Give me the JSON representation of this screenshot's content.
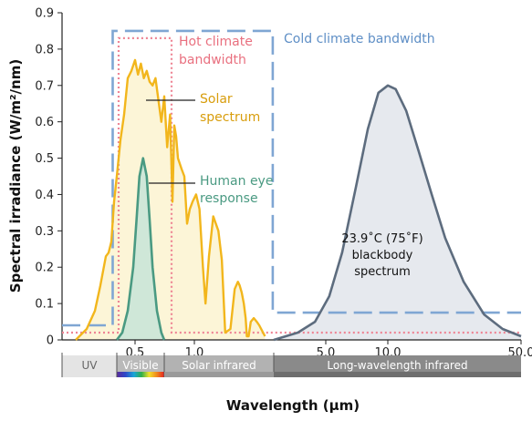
{
  "chart_data": {
    "type": "line",
    "ylabel": "Spectral irradiance (W/m²/nm)",
    "xlabel": "Wavelength (µm)",
    "ylim": [
      0,
      0.9
    ],
    "yticks": [
      "0",
      "0.1",
      "0.2",
      "0.3",
      "0.4",
      "0.5",
      "0.6",
      "0.7",
      "0.8",
      "0.9"
    ],
    "x_scale": "piecewise",
    "xticks": [
      "0.5",
      "1.0",
      "5.0",
      "10.0",
      "50.0"
    ],
    "bands": [
      {
        "label": "UV",
        "color": "#e4e4e4",
        "x": [
          0.2,
          0.4
        ]
      },
      {
        "label": "Visible",
        "color": "spectrum",
        "x": [
          0.4,
          0.7
        ]
      },
      {
        "label": "Solar infrared",
        "color": "#b2b2b2",
        "x": [
          0.7,
          3.0
        ]
      },
      {
        "label": "Long-wavelength infrared",
        "color": "#8a8a8a",
        "x": [
          3.0,
          50.0
        ]
      }
    ],
    "series": [
      {
        "name": "Solar spectrum",
        "color": "#f2b61c",
        "fill": "#fcf5d7",
        "points": [
          [
            0.25,
            0.0
          ],
          [
            0.29,
            0.03
          ],
          [
            0.32,
            0.08
          ],
          [
            0.34,
            0.15
          ],
          [
            0.36,
            0.23
          ],
          [
            0.37,
            0.24
          ],
          [
            0.38,
            0.27
          ],
          [
            0.39,
            0.38
          ],
          [
            0.4,
            0.45
          ],
          [
            0.42,
            0.55
          ],
          [
            0.44,
            0.62
          ],
          [
            0.46,
            0.72
          ],
          [
            0.48,
            0.74
          ],
          [
            0.5,
            0.77
          ],
          [
            0.52,
            0.73
          ],
          [
            0.54,
            0.76
          ],
          [
            0.56,
            0.72
          ],
          [
            0.58,
            0.74
          ],
          [
            0.6,
            0.71
          ],
          [
            0.62,
            0.7
          ],
          [
            0.64,
            0.72
          ],
          [
            0.66,
            0.66
          ],
          [
            0.68,
            0.6
          ],
          [
            0.7,
            0.67
          ],
          [
            0.72,
            0.53
          ],
          [
            0.74,
            0.62
          ],
          [
            0.76,
            0.38
          ],
          [
            0.78,
            0.59
          ],
          [
            0.8,
            0.56
          ],
          [
            0.82,
            0.5
          ],
          [
            0.86,
            0.47
          ],
          [
            0.89,
            0.45
          ],
          [
            0.92,
            0.32
          ],
          [
            0.95,
            0.36
          ],
          [
            0.98,
            0.38
          ],
          [
            1.02,
            0.4
          ],
          [
            1.06,
            0.36
          ],
          [
            1.1,
            0.2
          ],
          [
            1.13,
            0.1
          ],
          [
            1.17,
            0.23
          ],
          [
            1.22,
            0.34
          ],
          [
            1.28,
            0.3
          ],
          [
            1.32,
            0.22
          ],
          [
            1.36,
            0.02
          ],
          [
            1.42,
            0.03
          ],
          [
            1.47,
            0.14
          ],
          [
            1.52,
            0.16
          ],
          [
            1.58,
            0.15
          ],
          [
            1.65,
            0.13
          ],
          [
            1.72,
            0.1
          ],
          [
            1.78,
            0.06
          ],
          [
            1.82,
            0.01
          ],
          [
            1.88,
            0.01
          ],
          [
            1.95,
            0.05
          ],
          [
            2.05,
            0.06
          ],
          [
            2.15,
            0.05
          ],
          [
            2.25,
            0.04
          ],
          [
            2.35,
            0.03
          ],
          [
            2.45,
            0.02
          ],
          [
            2.55,
            0.01
          ]
        ]
      },
      {
        "name": "Human eye response",
        "color": "#4a9a82",
        "fill": "#cfe7d8",
        "points": [
          [
            0.4,
            0.0
          ],
          [
            0.43,
            0.02
          ],
          [
            0.46,
            0.08
          ],
          [
            0.49,
            0.2
          ],
          [
            0.51,
            0.33
          ],
          [
            0.53,
            0.45
          ],
          [
            0.555,
            0.5
          ],
          [
            0.58,
            0.45
          ],
          [
            0.6,
            0.33
          ],
          [
            0.62,
            0.2
          ],
          [
            0.65,
            0.08
          ],
          [
            0.68,
            0.02
          ],
          [
            0.7,
            0.0
          ]
        ]
      },
      {
        "name": "23.9˚C (75˚F) blackbody spectrum",
        "color": "#5d6c7e",
        "fill": "#e6e9ee",
        "points": [
          [
            3.0,
            0.0
          ],
          [
            3.8,
            0.02
          ],
          [
            4.5,
            0.05
          ],
          [
            5.2,
            0.12
          ],
          [
            6.0,
            0.24
          ],
          [
            7.0,
            0.42
          ],
          [
            8.0,
            0.58
          ],
          [
            9.0,
            0.68
          ],
          [
            10.0,
            0.7
          ],
          [
            11.0,
            0.69
          ],
          [
            12.5,
            0.63
          ],
          [
            14.5,
            0.52
          ],
          [
            17.0,
            0.4
          ],
          [
            20.0,
            0.28
          ],
          [
            25.0,
            0.16
          ],
          [
            32.0,
            0.07
          ],
          [
            40.0,
            0.03
          ],
          [
            50.0,
            0.01
          ]
        ]
      }
    ],
    "bandwidths": [
      {
        "label": "Cold climate bandwidth",
        "color": "#7fa6d3",
        "style": "dashed",
        "points": [
          [
            0.2,
            0.04
          ],
          [
            0.385,
            0.04
          ],
          [
            0.385,
            0.85
          ],
          [
            2.95,
            0.85
          ],
          [
            2.95,
            0.075
          ],
          [
            50.0,
            0.075
          ]
        ]
      },
      {
        "label": "Hot climate bandwidth",
        "color": "#ee8494",
        "style": "dotted",
        "points": [
          [
            0.2,
            0.02
          ],
          [
            0.41,
            0.02
          ],
          [
            0.41,
            0.83
          ],
          [
            0.75,
            0.83
          ],
          [
            0.75,
            0.02
          ],
          [
            50.0,
            0.02
          ]
        ]
      }
    ],
    "annotations": {
      "cold": "Cold climate bandwidth",
      "hot_line1": "Hot climate",
      "hot_line2": "bandwidth",
      "solar_line1": "Solar",
      "solar_line2": "spectrum",
      "eye_line1": "Human eye",
      "eye_line2": "response",
      "bb_line1": "23.9˚C (75˚F)",
      "bb_line2": "blackbody",
      "bb_line3": "spectrum"
    },
    "colors": {
      "solar": "#e8aa10",
      "eye": "#4a9a82",
      "cold": "#5f8fc6",
      "hot": "#e9707f"
    }
  }
}
